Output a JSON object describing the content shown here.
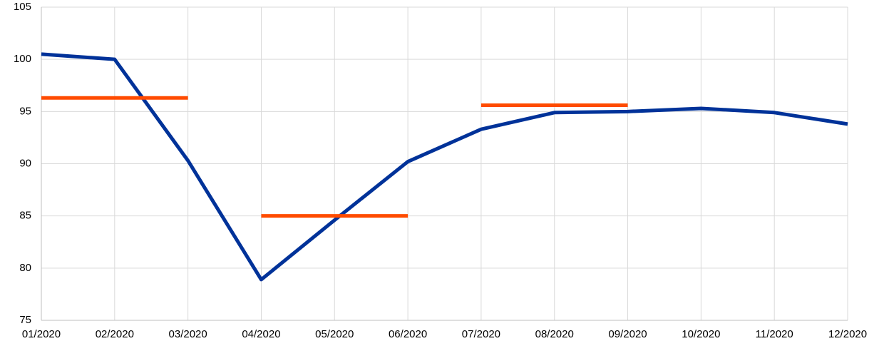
{
  "chart_data": {
    "type": "line",
    "categories": [
      "01/2020",
      "02/2020",
      "03/2020",
      "04/2020",
      "05/2020",
      "06/2020",
      "07/2020",
      "08/2020",
      "09/2020",
      "10/2020",
      "11/2020",
      "12/2020"
    ],
    "series": [
      {
        "color": "#003299",
        "values": [
          100.5,
          100.0,
          90.3,
          78.9,
          84.6,
          90.2,
          93.3,
          94.9,
          95.0,
          95.3,
          94.9,
          93.8
        ]
      },
      {
        "color": "#ff4b00",
        "values": [
          96.3,
          96.3,
          96.3,
          null,
          null,
          null,
          null,
          null,
          null,
          null,
          null,
          null
        ]
      },
      {
        "color": "#ff4b00",
        "values": [
          null,
          null,
          null,
          85.0,
          85.0,
          85.0,
          null,
          null,
          null,
          null,
          null,
          null
        ]
      },
      {
        "color": "#ff4b00",
        "values": [
          null,
          null,
          null,
          null,
          null,
          null,
          95.6,
          95.6,
          95.6,
          null,
          null,
          null
        ]
      }
    ],
    "ylim": [
      75,
      105
    ],
    "yticks": [
      75,
      80,
      85,
      90,
      95,
      100,
      105
    ],
    "grid": true
  }
}
